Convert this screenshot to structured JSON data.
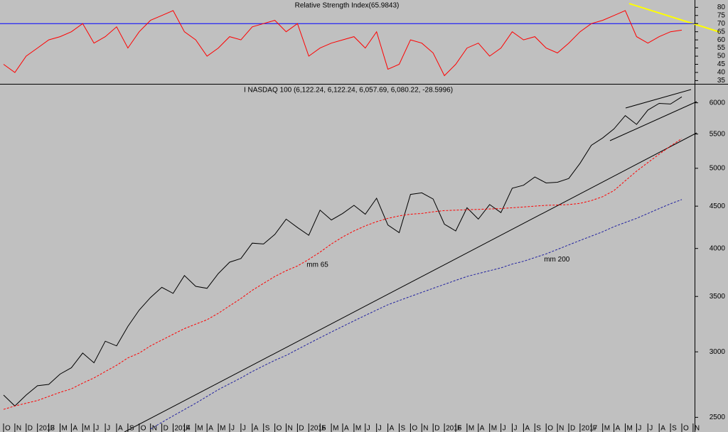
{
  "chart_data": [
    {
      "type": "line",
      "title": "Relative Strength Index(65.9843)",
      "color": "#ff0000",
      "values": [
        45,
        40,
        50,
        55,
        60,
        62,
        65,
        70,
        58,
        62,
        68,
        55,
        65,
        72,
        75,
        78,
        65,
        60,
        50,
        55,
        62,
        60,
        68,
        70,
        72,
        65,
        70,
        50,
        55,
        58,
        60,
        62,
        55,
        65,
        42,
        45,
        60,
        58,
        52,
        38,
        45,
        55,
        58,
        50,
        55,
        65,
        60,
        62,
        55,
        52,
        58,
        65,
        70,
        72,
        75,
        78,
        62,
        58,
        62,
        65,
        66,
        null
      ],
      "reference_line": {
        "value": 70,
        "color": "#0000ff"
      },
      "ylim": [
        33,
        84.5
      ],
      "yticks": [
        35,
        40,
        45,
        50,
        55,
        60,
        65,
        70,
        75,
        80
      ]
    },
    {
      "type": "line",
      "title": "I NASDAQ 100 (6,122.24, 6,122.24, 6,057.69, 6,080.22, -28.5996)",
      "log_scale": true,
      "categories": [
        "O",
        "N",
        "D",
        "2013",
        "F",
        "M",
        "A",
        "M",
        "J",
        "J",
        "A",
        "S",
        "O",
        "N",
        "D",
        "2014",
        "F",
        "M",
        "A",
        "M",
        "J",
        "J",
        "A",
        "S",
        "O",
        "N",
        "D",
        "2015",
        "F",
        "M",
        "A",
        "M",
        "J",
        "J",
        "A",
        "S",
        "O",
        "N",
        "D",
        "2016",
        "F",
        "M",
        "A",
        "M",
        "J",
        "J",
        "A",
        "S",
        "O",
        "N",
        "D",
        "2017",
        "F",
        "M",
        "A",
        "M",
        "J",
        "J",
        "A",
        "S",
        "O",
        "N"
      ],
      "series": [
        {
          "color": "#000000",
          "values": [
            2660,
            2580,
            2660,
            2730,
            2740,
            2820,
            2870,
            2990,
            2910,
            3090,
            3050,
            3220,
            3370,
            3490,
            3590,
            3530,
            3710,
            3600,
            3580,
            3730,
            3850,
            3890,
            4060,
            4050,
            4160,
            4340,
            4240,
            4150,
            4450,
            4330,
            4410,
            4510,
            4400,
            4600,
            4270,
            4180,
            4650,
            4670,
            4590,
            4280,
            4200,
            4480,
            4340,
            4520,
            4420,
            4730,
            4770,
            4880,
            4800,
            4810,
            4860,
            5070,
            5330,
            5440,
            5580,
            5790,
            5650,
            5880,
            5990,
            5980,
            6100,
            null
          ]
        },
        {
          "name": "mm 65",
          "color": "#ff0000",
          "values": [
            2556,
            2580,
            2600,
            2620,
            2650,
            2680,
            2706,
            2750,
            2790,
            2840,
            2890,
            2950,
            2990,
            3050,
            3100,
            3150,
            3200,
            3240,
            3280,
            3340,
            3410,
            3480,
            3560,
            3630,
            3700,
            3760,
            3810,
            3880,
            3960,
            4050,
            4130,
            4200,
            4260,
            4310,
            4350,
            4380,
            4400,
            4410,
            4430,
            4445,
            4450,
            4455,
            4460,
            4465,
            4470,
            4480,
            4490,
            4500,
            4510,
            4515,
            4520,
            4535,
            4570,
            4620,
            4700,
            4830,
            4960,
            5080,
            5200,
            5320,
            5430,
            null
          ]
        },
        {
          "name": "mm 200",
          "color": "#2020a0",
          "values": [
            null,
            null,
            null,
            null,
            null,
            null,
            null,
            null,
            null,
            null,
            null,
            null,
            null,
            2420,
            2465,
            2510,
            2555,
            2600,
            2650,
            2700,
            2745,
            2790,
            2840,
            2885,
            2930,
            2970,
            3020,
            3070,
            3120,
            3170,
            3220,
            3270,
            3320,
            3370,
            3420,
            3460,
            3500,
            3540,
            3580,
            3620,
            3660,
            3700,
            3730,
            3760,
            3790,
            3830,
            3860,
            3900,
            3940,
            3990,
            4040,
            4090,
            4140,
            4190,
            4250,
            4300,
            4350,
            4410,
            4470,
            4530,
            4583,
            null
          ]
        }
      ],
      "ylim": [
        2400,
        6300
      ],
      "yticks": [
        2500,
        3000,
        3500,
        4000,
        4500,
        5000,
        5500,
        6000
      ]
    }
  ]
}
